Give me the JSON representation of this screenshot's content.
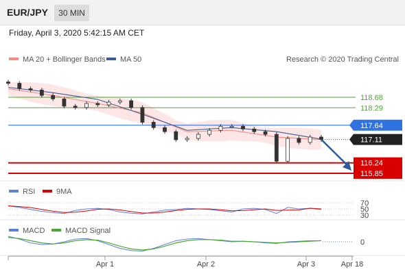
{
  "header": {
    "symbol": "EUR/JPY",
    "timeframe": "30 MIN",
    "date_line": "Friday, April 3, 2020 5:42:15 AM CET"
  },
  "legend": {
    "ma20_label": "MA 20 + Bollinger Bands",
    "ma50_label": "MA 50",
    "credit": "Research © 2020 Trading Central"
  },
  "colors": {
    "ma20": "#f28b82",
    "ma50": "#3b5b92",
    "bollinger_fill": "#fde3e3",
    "support_line": "#d90000",
    "resistance_blue": "#2f73e0",
    "green_level": "#4aa832",
    "current_price_bg": "#222222",
    "rsi_line": "#5d7fd6",
    "rsi_ma": "#d90000",
    "macd_line": "#5d7fd6",
    "macd_signal": "#4aa832",
    "forecast_arrow": "#2a5b9a"
  },
  "chart_data": {
    "type": "line",
    "title": "EUR/JPY",
    "xlabel": "",
    "ylabel": "",
    "x_ticks": [
      "Apr 1",
      "Apr 2",
      "Apr 3",
      "Apr 18"
    ],
    "ylim": [
      115.5,
      119.4
    ],
    "price": {
      "x": [
        0,
        5,
        10,
        15,
        20,
        25,
        30,
        35,
        40,
        45,
        50,
        55,
        60,
        65,
        70,
        75,
        80,
        85,
        90,
        95,
        100,
        105,
        110,
        115,
        120,
        125,
        130,
        135,
        140
      ],
      "close": [
        119.2,
        119.0,
        118.95,
        118.75,
        118.62,
        118.35,
        118.3,
        118.45,
        118.4,
        118.5,
        118.55,
        118.3,
        117.75,
        117.55,
        117.4,
        117.1,
        117.15,
        117.3,
        117.45,
        117.6,
        117.6,
        117.5,
        117.4,
        117.3,
        116.3,
        117.15,
        117.0,
        117.2,
        117.11
      ]
    },
    "series": [
      {
        "name": "MA 20 + Bollinger Bands",
        "x": [
          0,
          20,
          40,
          60,
          80,
          100,
          120,
          140
        ],
        "values": [
          119.0,
          118.75,
          118.45,
          118.1,
          117.4,
          117.45,
          117.2,
          117.1
        ]
      },
      {
        "name": "MA 50",
        "x": [
          0,
          20,
          40,
          60,
          80,
          100,
          120,
          140
        ],
        "values": [
          119.05,
          118.85,
          118.6,
          118.05,
          117.45,
          117.55,
          117.4,
          117.12
        ]
      }
    ],
    "levels": [
      {
        "value": 118.68,
        "label": "118.68",
        "kind": "resistance-green"
      },
      {
        "value": 118.29,
        "label": "118.29",
        "kind": "resistance-green"
      },
      {
        "value": 117.64,
        "label": "117.64",
        "kind": "resistance-blue"
      },
      {
        "value": 117.11,
        "label": "117.11",
        "kind": "current"
      },
      {
        "value": 116.24,
        "label": "116.24",
        "kind": "support"
      },
      {
        "value": 115.85,
        "label": "115.85",
        "kind": "support"
      }
    ],
    "rsi": {
      "label": "RSI",
      "ma_label": "9MA",
      "ticks": [
        "70",
        "50",
        "30"
      ],
      "values": [
        60,
        55,
        48,
        42,
        38,
        35,
        45,
        50,
        52,
        48,
        40,
        36,
        34,
        40,
        46,
        48,
        52,
        50,
        48,
        44,
        40,
        50,
        52,
        48,
        35,
        55,
        50,
        52,
        48
      ]
    },
    "macd": {
      "label": "MACD",
      "signal_label": "MACD Signal",
      "tick": "0",
      "values": [
        0.1,
        0.05,
        -0.02,
        -0.05,
        -0.04,
        0.0,
        0.05,
        0.06,
        0.02,
        -0.05,
        -0.12,
        -0.16,
        -0.17,
        -0.12,
        -0.05,
        0.02,
        0.05,
        0.06,
        0.04,
        0.02,
        0.0,
        0.01,
        0.0,
        -0.02,
        -0.03,
        0.0,
        0.01,
        0.02,
        0.02
      ],
      "signal": [
        0.08,
        0.06,
        0.02,
        -0.02,
        -0.04,
        -0.02,
        0.02,
        0.04,
        0.03,
        -0.02,
        -0.08,
        -0.13,
        -0.15,
        -0.13,
        -0.08,
        -0.02,
        0.02,
        0.04,
        0.04,
        0.03,
        0.01,
        0.01,
        0.0,
        -0.01,
        -0.02,
        -0.01,
        0.0,
        0.01,
        0.02
      ]
    }
  }
}
